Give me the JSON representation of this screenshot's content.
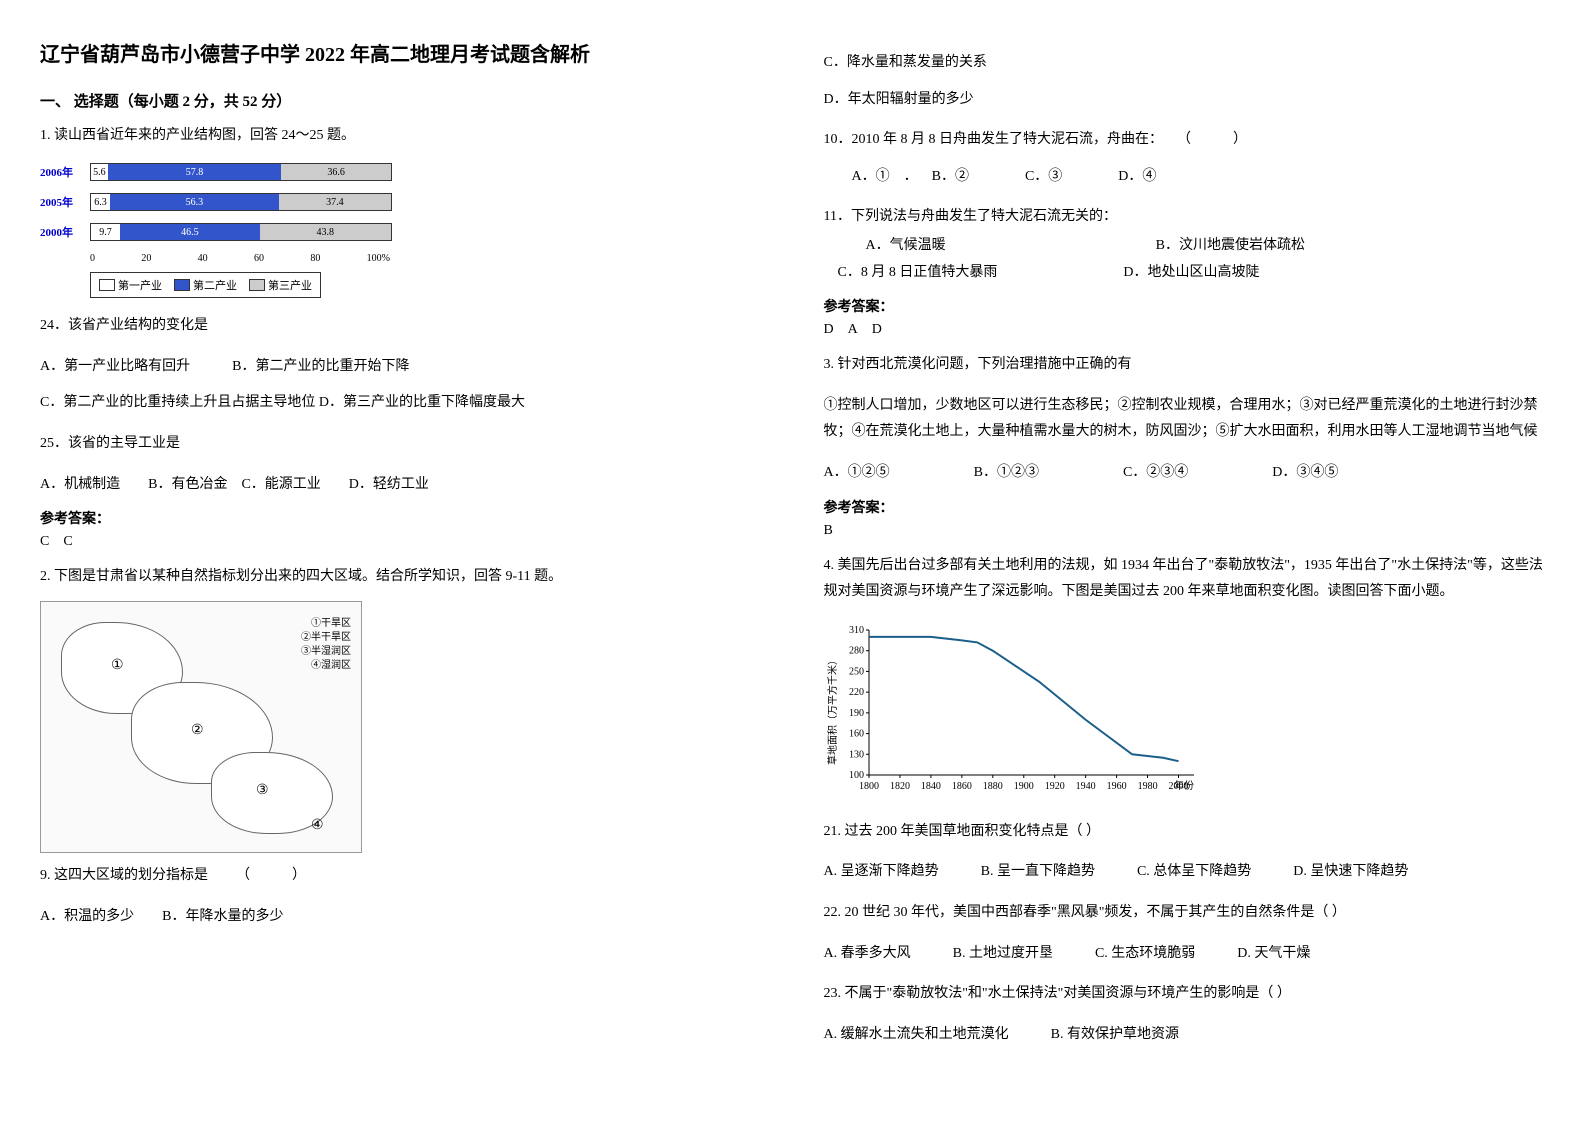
{
  "title": "辽宁省葫芦岛市小德营子中学 2022 年高二地理月考试题含解析",
  "section1_header": "一、 选择题（每小题 2 分，共 52 分）",
  "q1_intro": "1. 读山西省近年来的产业结构图，回答 24～25 题。",
  "bar_chart": {
    "years": [
      "2006年",
      "2005年",
      "2000年"
    ],
    "rows": [
      {
        "year": "2006年",
        "v1": 5.6,
        "v2": 57.8,
        "v3": 36.6
      },
      {
        "year": "2005年",
        "v1": 6.3,
        "v2": 56.3,
        "v3": 37.4
      },
      {
        "year": "2000年",
        "v1": 9.7,
        "v2": 46.5,
        "v3": 43.8
      }
    ],
    "axis_ticks": [
      "0",
      "20",
      "40",
      "60",
      "80",
      "100%"
    ],
    "legend": [
      "第一产业",
      "第二产业",
      "第三产业"
    ],
    "colors": {
      "seg1": "#ffffff",
      "seg2": "#3355cc",
      "seg3": "#cccccc",
      "border": "#333333",
      "year_color": "#0000cc"
    }
  },
  "q24_text": "24．该省产业结构的变化是",
  "q24_optsA": "A．第一产业比略有回升   B．第二产业的比重开始下降",
  "q24_optsB": "C．第二产业的比重持续上升且占据主导地位 D．第三产业的比重下降幅度最大",
  "q25_text": "25．该省的主导工业是",
  "q25_opts": "A．机械制造  B．有色冶金 C．能源工业  D．轻纺工业",
  "ans1_label": "参考答案：",
  "ans1_value": "C C",
  "q2_intro": "2. 下图是甘肃省以某种自然指标划分出来的四大区域。结合所学知识，回答 9-11 题。",
  "map_labels": {
    "l1": "①干旱区",
    "l2": "②半干旱区",
    "l3": "③半湿润区",
    "l4": "④湿润区"
  },
  "q9_text": "9. 这四大区域的划分指标是  （   ）",
  "q9_optA": "A．积温的多少  B．年降水量的多少",
  "q9_optC": "C．降水量和蒸发量的关系",
  "q9_optD": "D．年太阳辐射量的多少",
  "q10_text": "10．2010 年 8 月 8 日舟曲发生了特大泥石流，舟曲在： （   ）",
  "q10_opts": "  A．① ． B．②    C．③    D．④",
  "q11_text": "11．下列说法与舟曲发生了特大泥石流无关的：",
  "q11_optsA": "   A．气候温暖               B．汶川地震使岩体疏松",
  "q11_optsB": " C．8 月 8 日正值特大暴雨         D．地处山区山高坡陡",
  "ans2_label": "参考答案：",
  "ans2_value": "D A D",
  "q3_text": "3. 针对西北荒漠化问题，下列治理措施中正确的有",
  "q3_body": "①控制人口增加，少数地区可以进行生态移民；②控制农业规模，合理用水；③对已经严重荒漠化的土地进行封沙禁牧；④在荒漠化土地上，大量种植需水量大的树木，防风固沙；⑤扩大水田面积，利用水田等人工湿地调节当地气候",
  "q3_opts": "A．①②⑤      B．①②③      C．②③④      D．③④⑤",
  "ans3_label": "参考答案：",
  "ans3_value": "B",
  "q4_intro": "4. 美国先后出台过多部有关土地利用的法规，如 1934 年出台了\"泰勒放牧法\"，1935 年出台了\"水土保持法\"等，这些法规对美国资源与环境产生了深远影响。下图是美国过去 200 年来草地面积变化图。读图回答下面小题。",
  "line_chart": {
    "type": "line",
    "x_ticks": [
      "1800",
      "1820",
      "1840",
      "1860",
      "1880",
      "1900",
      "1920",
      "1940",
      "1960",
      "1980",
      "2000",
      "年份"
    ],
    "y_ticks": [
      "100",
      "130",
      "160",
      "190",
      "220",
      "250",
      "280",
      "310"
    ],
    "y_label": "草地面积（万平方千米）",
    "points_y": [
      300,
      300,
      300,
      295,
      292,
      280,
      265,
      250,
      235,
      180,
      130,
      125,
      120
    ],
    "points_x": [
      1800,
      1820,
      1840,
      1860,
      1870,
      1880,
      1890,
      1900,
      1910,
      1940,
      1970,
      1990,
      2000
    ],
    "xlim": [
      1800,
      2010
    ],
    "ylim": [
      100,
      310
    ],
    "line_color": "#1b5e8a",
    "axis_color": "#000000",
    "background_color": "#ffffff",
    "label_fontsize": 10
  },
  "q21_text": "21.  过去 200 年美国草地面积变化特点是（    ）",
  "q21_opts": "A. 呈逐渐下降趋势   B. 呈一直下降趋势   C. 总体呈下降趋势   D. 呈快速下降趋势",
  "q22_text": "22.  20 世纪 30 年代，美国中西部春季\"黑风暴\"频发，不属于其产生的自然条件是（    ）",
  "q22_opts": "A. 春季多大风   B. 土地过度开垦   C. 生态环境脆弱   D. 天气干燥",
  "q23_text": "23.  不属于\"泰勒放牧法\"和\"水土保持法\"对美国资源与环境产生的影响是（    ）",
  "q23_opts": "A. 缓解水土流失和土地荒漠化   B. 有效保护草地资源"
}
